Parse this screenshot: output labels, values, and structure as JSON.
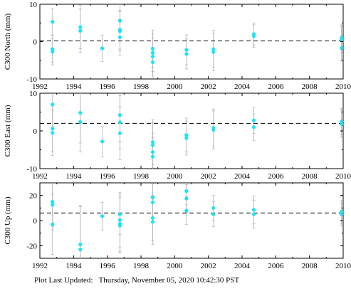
{
  "footer": {
    "label": "Plot Last Updated:",
    "timestamp": "Thursday, November 05, 2020 10:42:30 PST"
  },
  "colors": {
    "point": "#1ee3f5",
    "errorbar": "#b3b3b3",
    "reference": "#000000"
  },
  "chart_data": [
    {
      "type": "scatter",
      "ylabel": "C300 North (mm)",
      "xlim": [
        1992,
        2010
      ],
      "ylim": [
        -10,
        10
      ],
      "xticks": [
        1992,
        1994,
        1996,
        1998,
        2000,
        2002,
        2004,
        2006,
        2008,
        2010
      ],
      "yticks": [
        -10,
        0,
        10
      ],
      "show_x_ticklabels": true,
      "reference_line": 0.2,
      "points": [
        {
          "x": 1992.75,
          "y": 5.3,
          "err": 3.5
        },
        {
          "x": 1992.75,
          "y": -2.0,
          "err": 3.5
        },
        {
          "x": 1992.75,
          "y": -2.7,
          "err": 3.5
        },
        {
          "x": 1994.4,
          "y": 3.9,
          "err": 5.8
        },
        {
          "x": 1994.4,
          "y": 2.9,
          "err": 5.8
        },
        {
          "x": 1995.7,
          "y": -1.8,
          "err": 3.5
        },
        {
          "x": 1996.75,
          "y": 5.6,
          "err": 4.8
        },
        {
          "x": 1996.75,
          "y": 3.2,
          "err": 5.2
        },
        {
          "x": 1996.75,
          "y": 2.8,
          "err": 5.2
        },
        {
          "x": 1996.75,
          "y": 1.2,
          "err": 4.8
        },
        {
          "x": 1998.7,
          "y": -1.9,
          "err": 5.0
        },
        {
          "x": 1998.7,
          "y": -3.0,
          "err": 5.0
        },
        {
          "x": 1998.7,
          "y": -4.0,
          "err": 5.0
        },
        {
          "x": 1998.7,
          "y": -5.5,
          "err": 4.0
        },
        {
          "x": 2000.7,
          "y": -2.2,
          "err": 4.0
        },
        {
          "x": 2000.7,
          "y": -3.3,
          "err": 4.0
        },
        {
          "x": 2002.3,
          "y": -2.0,
          "err": 5.0
        },
        {
          "x": 2002.3,
          "y": -2.8,
          "err": 5.0
        },
        {
          "x": 2004.7,
          "y": 2.0,
          "err": 3.0
        },
        {
          "x": 2004.7,
          "y": 1.5,
          "err": 3.0
        },
        {
          "x": 2009.9,
          "y": 1.0,
          "err": 3.5
        },
        {
          "x": 2009.9,
          "y": 0.5,
          "err": 3.5
        },
        {
          "x": 2009.9,
          "y": -1.7,
          "err": 3.5
        }
      ]
    },
    {
      "type": "scatter",
      "ylabel": "C300 East (mm)",
      "xlim": [
        1992,
        2010
      ],
      "ylim": [
        -10,
        10
      ],
      "xticks": [
        1992,
        1994,
        1996,
        1998,
        2000,
        2002,
        2004,
        2006,
        2008,
        2010
      ],
      "yticks": [
        -10,
        0,
        10
      ],
      "show_x_ticklabels": true,
      "reference_line": 2.0,
      "points": [
        {
          "x": 1992.75,
          "y": 7.0,
          "err": 6.0
        },
        {
          "x": 1992.75,
          "y": 0.6,
          "err": 6.0
        },
        {
          "x": 1992.75,
          "y": -0.5,
          "err": 6.0
        },
        {
          "x": 1994.4,
          "y": 4.8,
          "err": 8.0
        },
        {
          "x": 1994.4,
          "y": 2.4,
          "err": 8.0
        },
        {
          "x": 1995.7,
          "y": -2.8,
          "err": 4.0
        },
        {
          "x": 1996.75,
          "y": 4.2,
          "err": 7.0
        },
        {
          "x": 1996.75,
          "y": 2.3,
          "err": 7.0
        },
        {
          "x": 1996.75,
          "y": -0.6,
          "err": 7.0
        },
        {
          "x": 1998.7,
          "y": -3.0,
          "err": 6.0
        },
        {
          "x": 1998.7,
          "y": -3.8,
          "err": 6.0
        },
        {
          "x": 1998.7,
          "y": -5.6,
          "err": 5.0
        },
        {
          "x": 1998.7,
          "y": -6.8,
          "err": 5.0
        },
        {
          "x": 2000.7,
          "y": -1.1,
          "err": 4.5
        },
        {
          "x": 2000.7,
          "y": -1.9,
          "err": 4.5
        },
        {
          "x": 2002.3,
          "y": 0.8,
          "err": 5.0
        },
        {
          "x": 2002.3,
          "y": 0.3,
          "err": 5.0
        },
        {
          "x": 2004.7,
          "y": 2.8,
          "err": 3.5
        },
        {
          "x": 2004.7,
          "y": 1.0,
          "err": 3.5
        },
        {
          "x": 2009.9,
          "y": 2.5,
          "err": 3.5
        },
        {
          "x": 2009.9,
          "y": 1.8,
          "err": 3.5
        }
      ]
    },
    {
      "type": "scatter",
      "ylabel": "C300 Up (mm)",
      "xlim": [
        1992,
        2010
      ],
      "ylim": [
        -30,
        30
      ],
      "xticks": [
        1992,
        1994,
        1996,
        1998,
        2000,
        2002,
        2004,
        2006,
        2008,
        2010
      ],
      "xticklabels": [
        "1992",
        "1994",
        "1996",
        "1998",
        "2000",
        "2002",
        "2004",
        "2006",
        "2008",
        "2010"
      ],
      "yticks": [
        -20,
        0,
        20
      ],
      "show_x_ticklabels": true,
      "reference_line": 6.0,
      "points": [
        {
          "x": 1992.75,
          "y": 15.0,
          "err": 20.0
        },
        {
          "x": 1992.75,
          "y": 12.5,
          "err": 20.0
        },
        {
          "x": 1992.75,
          "y": -3.0,
          "err": 24.0
        },
        {
          "x": 1994.4,
          "y": -19.0,
          "err": 30.0
        },
        {
          "x": 1994.4,
          "y": -23.0,
          "err": 35.0
        },
        {
          "x": 1995.7,
          "y": 3.5,
          "err": 11.0
        },
        {
          "x": 1996.75,
          "y": 5.0,
          "err": 16.0
        },
        {
          "x": 1996.75,
          "y": 0.5,
          "err": 22.0
        },
        {
          "x": 1996.75,
          "y": -2.5,
          "err": 22.0
        },
        {
          "x": 1996.75,
          "y": -4.0,
          "err": 22.0
        },
        {
          "x": 1998.7,
          "y": 18.5,
          "err": 15.0
        },
        {
          "x": 1998.7,
          "y": 14.5,
          "err": 15.0
        },
        {
          "x": 1998.7,
          "y": 2.0,
          "err": 18.0
        },
        {
          "x": 1998.7,
          "y": -1.0,
          "err": 18.0
        },
        {
          "x": 2000.7,
          "y": 23.5,
          "err": 11.0
        },
        {
          "x": 2000.7,
          "y": 17.5,
          "err": 11.0
        },
        {
          "x": 2000.7,
          "y": 8.0,
          "err": 11.0
        },
        {
          "x": 2002.3,
          "y": 10.0,
          "err": 10.0
        },
        {
          "x": 2002.3,
          "y": 5.0,
          "err": 10.0
        },
        {
          "x": 2004.7,
          "y": 8.5,
          "err": 11.0
        },
        {
          "x": 2004.7,
          "y": 5.0,
          "err": 11.0
        },
        {
          "x": 2009.9,
          "y": 7.0,
          "err": 9.0
        },
        {
          "x": 2009.9,
          "y": 5.0,
          "err": 9.0
        }
      ]
    }
  ]
}
